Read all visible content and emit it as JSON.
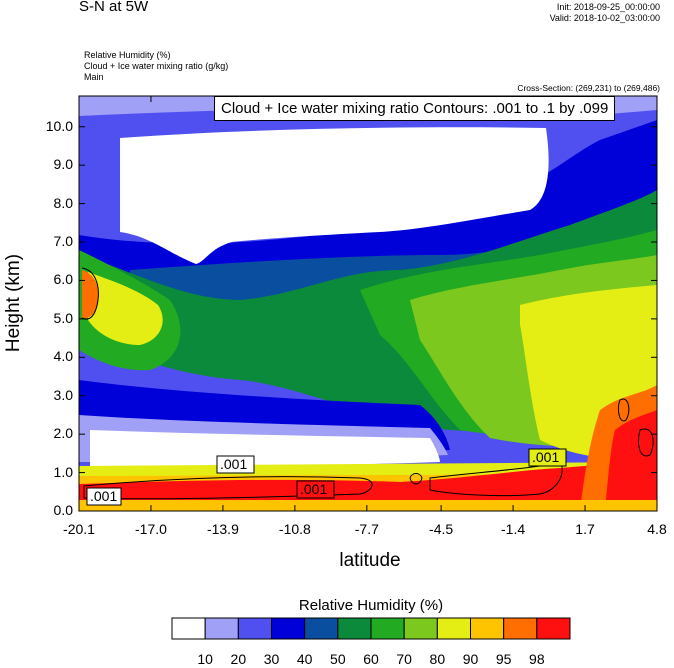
{
  "header": {
    "title": "S-N at 5W",
    "init": "Init: 2018-09-25_00:00:00",
    "valid": "Valid: 2018-10-02_03:00:00",
    "fields": [
      "Relative Humidity   (%)",
      "Cloud + Ice water mixing ratio   (g/kg)",
      "Main"
    ],
    "cross_section": "Cross-Section: (269,231) to (269,486)"
  },
  "chart_data": {
    "type": "heatmap",
    "overlay": "Cloud + Ice water mixing ratio Contours: .001 to .1 by .099",
    "xlabel": "latitude",
    "ylabel": "Height (km)",
    "xlim": [
      -20.1,
      4.8
    ],
    "ylim": [
      0,
      10.8
    ],
    "x_ticks": [
      "-20.1",
      "-17.0",
      "-13.9",
      "-10.8",
      "-7.7",
      "-4.5",
      "-1.4",
      "1.7",
      "4.8"
    ],
    "y_ticks": [
      "0.0",
      "1.0",
      "2.0",
      "3.0",
      "4.0",
      "5.0",
      "6.0",
      "7.0",
      "8.0",
      "9.0",
      "10.0"
    ],
    "contour_labels": [
      ".001",
      ".001",
      ".001",
      ".001"
    ],
    "colorbar": {
      "title": "Relative Humidity  (%)",
      "levels": [
        "10",
        "20",
        "30",
        "40",
        "50",
        "60",
        "70",
        "80",
        "90",
        "95",
        "98"
      ],
      "colors": [
        "#ffffff",
        "#a0a0f6",
        "#5050f0",
        "#0000d8",
        "#0a4ea0",
        "#0a8a3a",
        "#22aa22",
        "#7cc81e",
        "#e4ee14",
        "#ffc400",
        "#ff6e00",
        "#ff1010"
      ]
    }
  }
}
